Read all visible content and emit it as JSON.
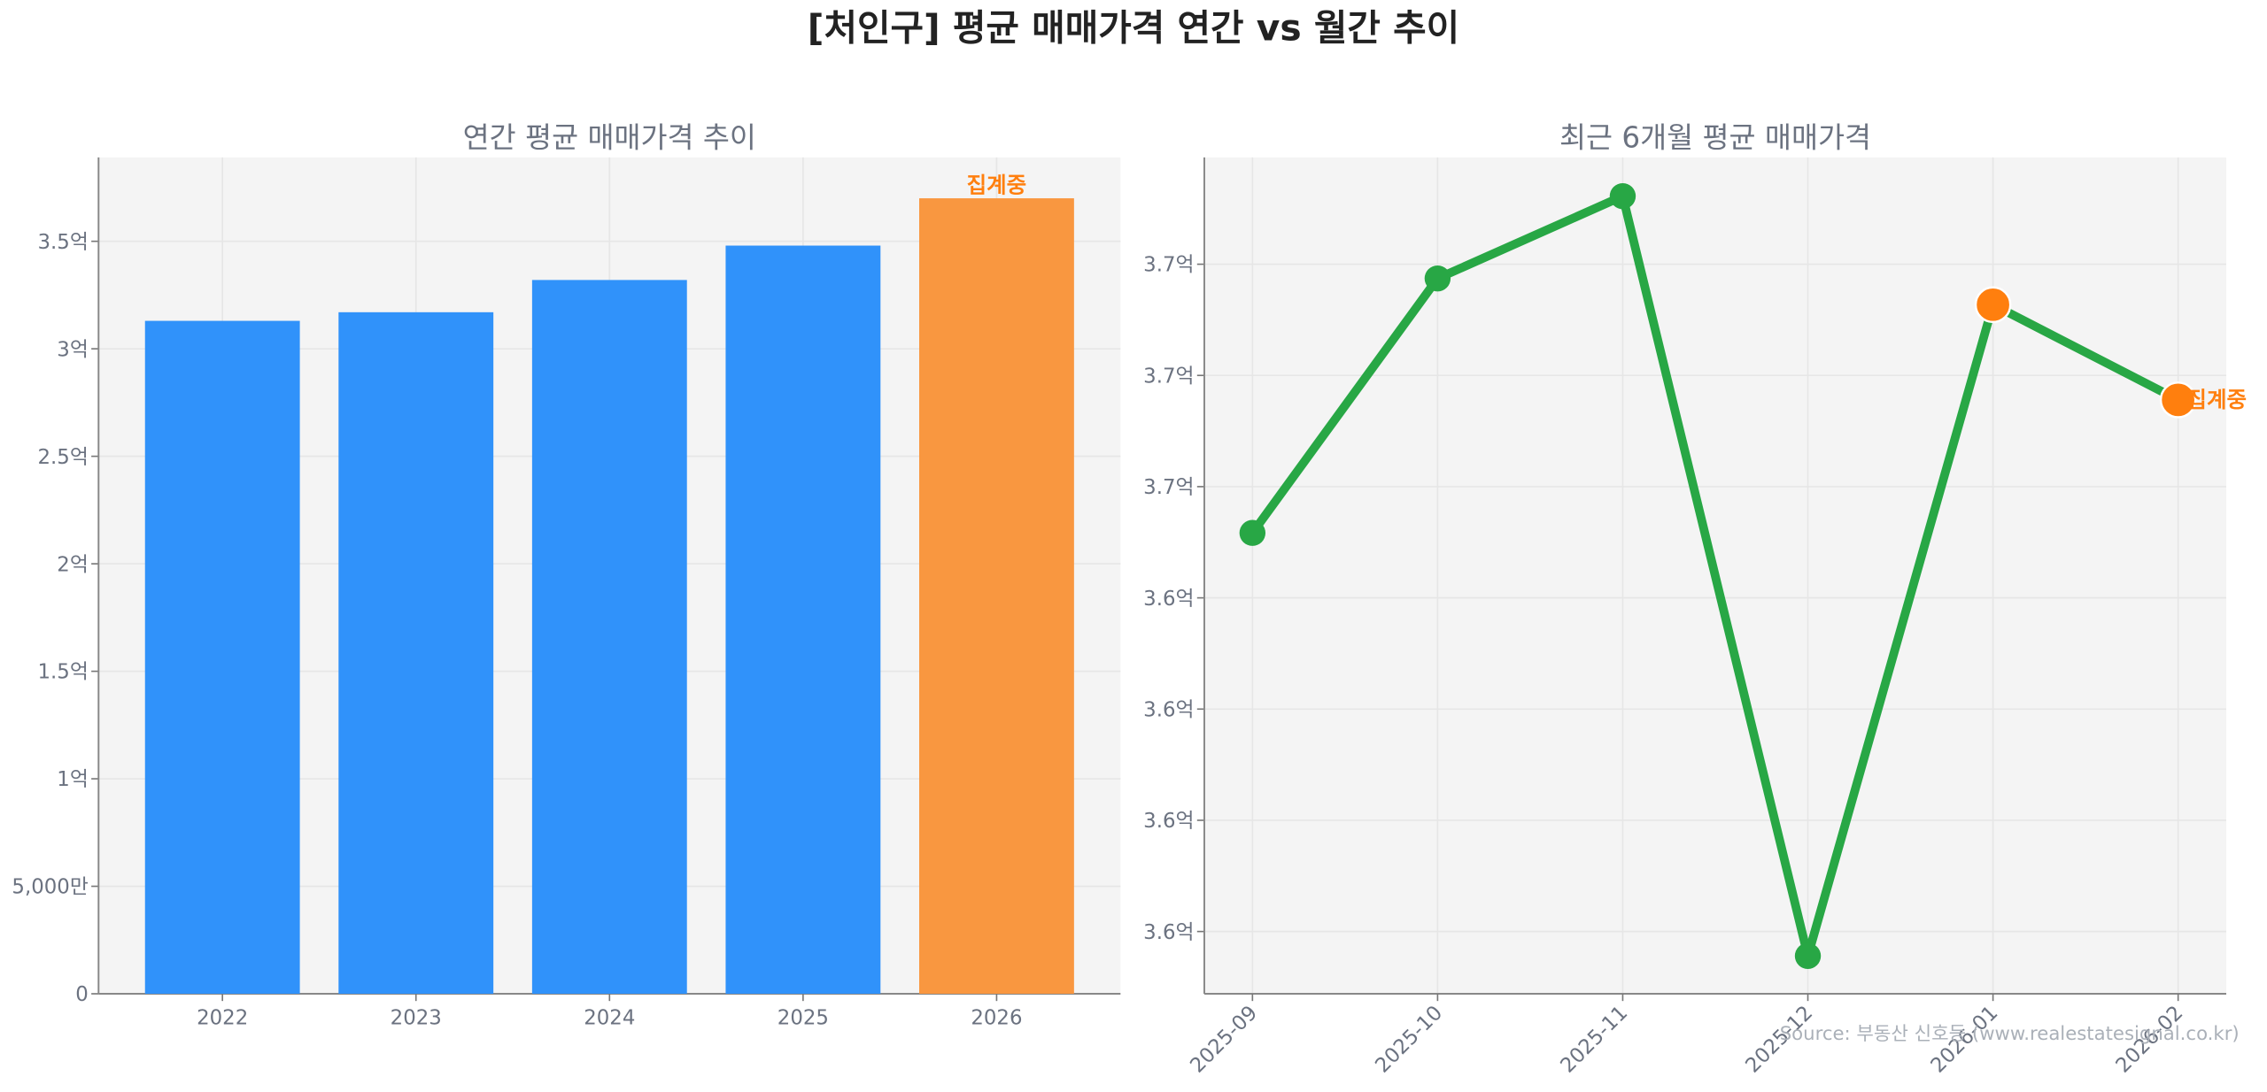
{
  "title": "[처인구] 평균 매매가격 연간 vs 월간 추이",
  "source": "Source: 부동산 신호등 (www.realestatesignal.co.kr)",
  "colors": {
    "bar": "#3092fa",
    "bar_partial": "#f99740",
    "line": "#28a745",
    "marker_partial": "#ff7f0e",
    "plot_bg": "#f4f4f4",
    "grid": "#e6e6e6",
    "annotation": "#ff7f0e"
  },
  "chart_data": [
    {
      "type": "bar",
      "title": "연간 평균 매매가격 추이",
      "unit": "억",
      "categories": [
        "2022",
        "2023",
        "2024",
        "2025",
        "2026"
      ],
      "values": [
        3.13,
        3.17,
        3.32,
        3.48,
        3.7
      ],
      "partial": [
        false,
        false,
        false,
        false,
        true
      ],
      "annotation": "집계중",
      "ylim": [
        0,
        3.89
      ],
      "yticks": [
        0,
        0.5,
        1,
        1.5,
        2,
        2.5,
        3,
        3.5
      ],
      "ytick_labels": [
        "0",
        "5,000만",
        "1억",
        "1.5억",
        "2억",
        "2.5억",
        "3억",
        "3.5억"
      ],
      "grid": true
    },
    {
      "type": "line",
      "title": "최근 6개월 평균 매매가격",
      "unit": "억",
      "categories": [
        "2025-09",
        "2025-10",
        "2025-11",
        "2025-12",
        "2026-01",
        "2026-02"
      ],
      "values": [
        3.6646,
        3.7218,
        3.7403,
        3.5695,
        3.7159,
        3.6945
      ],
      "partial": [
        false,
        false,
        false,
        false,
        true,
        true
      ],
      "annotation": "집계중",
      "ylim": [
        3.561,
        3.749
      ],
      "yticks": [
        3.575,
        3.6,
        3.625,
        3.65,
        3.675,
        3.7,
        3.725
      ],
      "ytick_labels": [
        "3.6억",
        "3.6억",
        "3.6억",
        "3.6억",
        "3.7억",
        "3.7억",
        "3.7억"
      ],
      "xtick_rotation": -45,
      "grid": true
    }
  ]
}
